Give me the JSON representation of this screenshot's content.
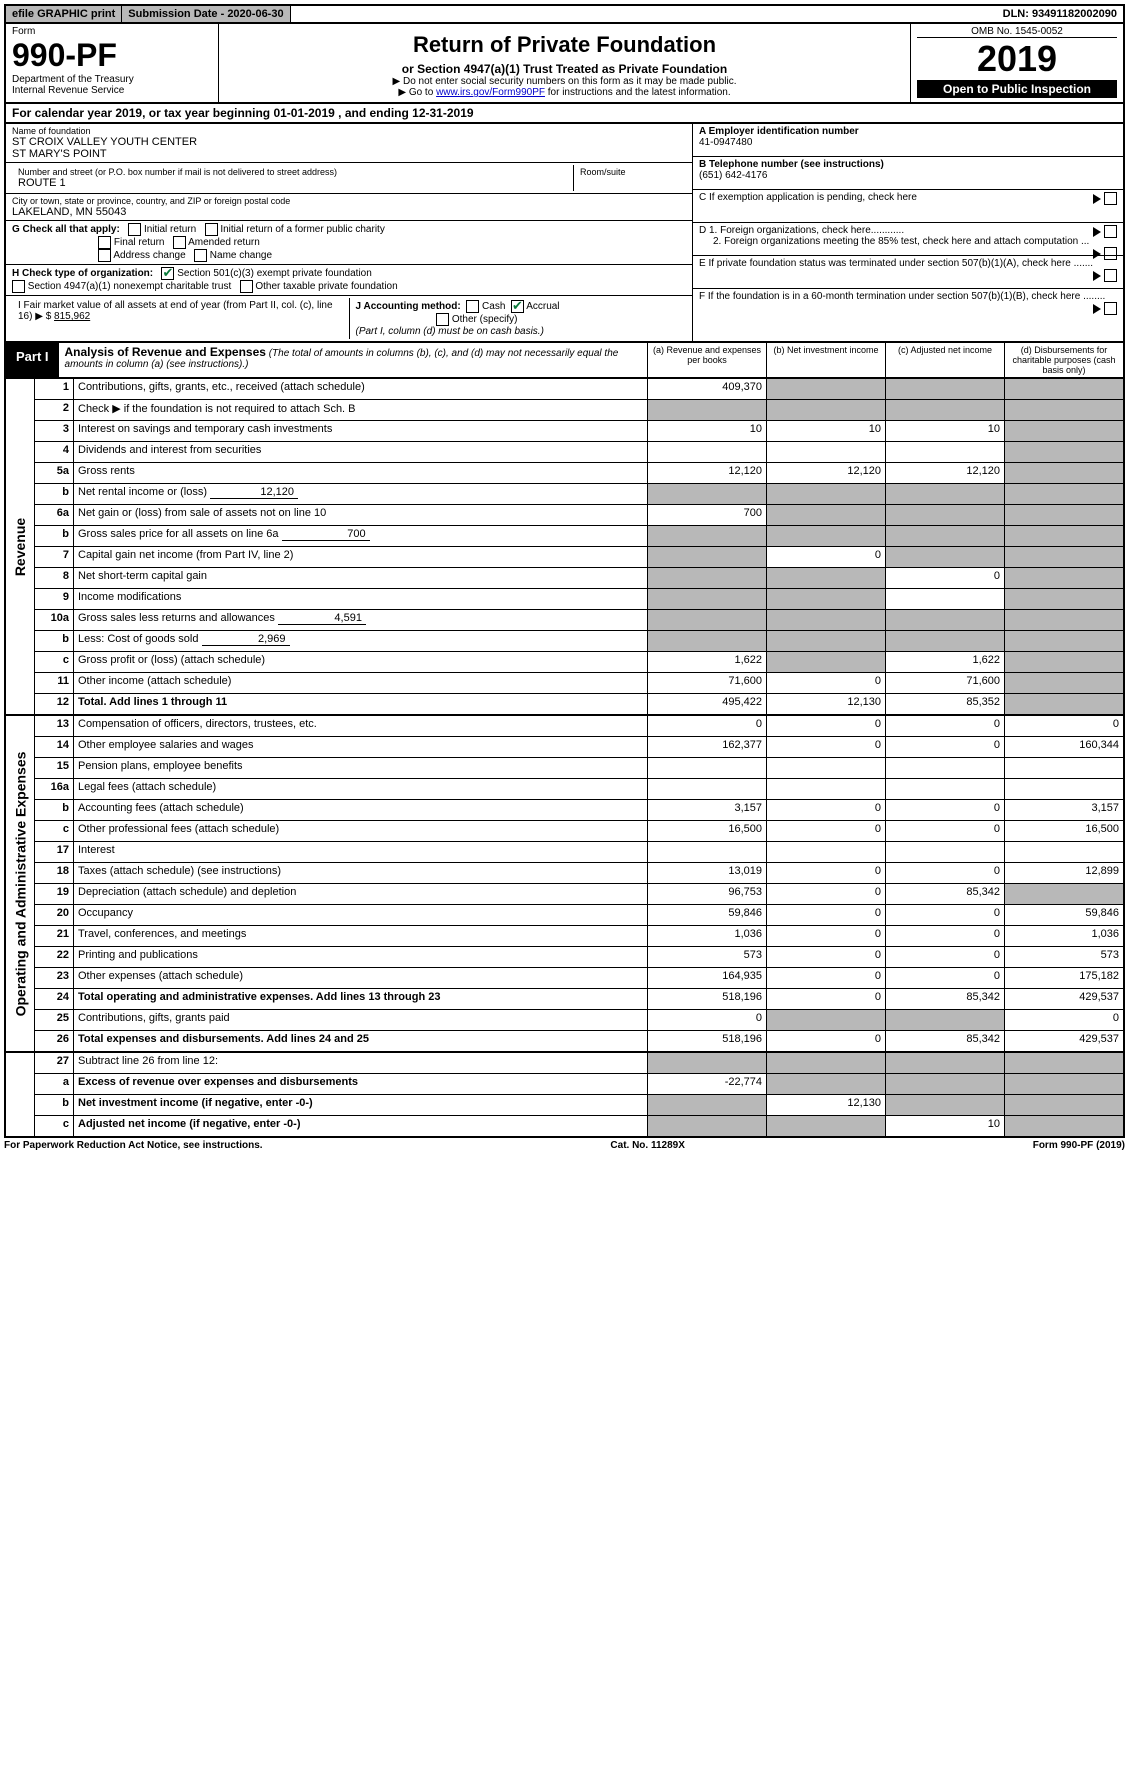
{
  "top": {
    "efile": "efile GRAPHIC print",
    "submission": "Submission Date - 2020-06-30",
    "dln": "DLN: 93491182002090"
  },
  "header": {
    "form_label": "Form",
    "form_number": "990-PF",
    "dept": "Department of the Treasury",
    "irs": "Internal Revenue Service",
    "title": "Return of Private Foundation",
    "subtitle": "or Section 4947(a)(1) Trust Treated as Private Foundation",
    "note1": "▶ Do not enter social security numbers on this form as it may be made public.",
    "note2_pre": "▶ Go to ",
    "note2_link": "www.irs.gov/Form990PF",
    "note2_post": " for instructions and the latest information.",
    "omb": "OMB No. 1545-0052",
    "year": "2019",
    "open": "Open to Public Inspection"
  },
  "cal": "For calendar year 2019, or tax year beginning 01-01-2019                    , and ending 12-31-2019",
  "info": {
    "name_label": "Name of foundation",
    "name1": "ST CROIX VALLEY YOUTH CENTER",
    "name2": "ST MARY'S POINT",
    "addr_label": "Number and street (or P.O. box number if mail is not delivered to street address)",
    "room_label": "Room/suite",
    "addr": "ROUTE 1",
    "city_label": "City or town, state or province, country, and ZIP or foreign postal code",
    "city": "LAKELAND, MN  55043",
    "g_label": "G Check all that apply:",
    "g_initial": "Initial return",
    "g_initial_former": "Initial return of a former public charity",
    "g_final": "Final return",
    "g_amended": "Amended return",
    "g_addr_change": "Address change",
    "g_name_change": "Name change",
    "h_label": "H Check type of organization:",
    "h_501c3": "Section 501(c)(3) exempt private foundation",
    "h_4947": "Section 4947(a)(1) nonexempt charitable trust",
    "h_other_tax": "Other taxable private foundation",
    "i_label": "I Fair market value of all assets at end of year (from Part II, col. (c), line 16) ▶ $",
    "i_value": "815,962",
    "j_label": "J Accounting method:",
    "j_cash": "Cash",
    "j_accrual": "Accrual",
    "j_other": "Other (specify)",
    "j_note": "(Part I, column (d) must be on cash basis.)",
    "a_label": "A Employer identification number",
    "a_value": "41-0947480",
    "b_label": "B Telephone number (see instructions)",
    "b_value": "(651) 642-4176",
    "c_label": "C If exemption application is pending, check here",
    "d1_label": "D 1. Foreign organizations, check here............",
    "d2_label": "2. Foreign organizations meeting the 85% test, check here and attach computation ...",
    "e_label": "E  If private foundation status was terminated under section 507(b)(1)(A), check here .......",
    "f_label": "F  If the foundation is in a 60-month termination under section 507(b)(1)(B), check here ........"
  },
  "part1": {
    "tab": "Part I",
    "title": "Analysis of Revenue and Expenses",
    "title_note": "(The total of amounts in columns (b), (c), and (d) may not necessarily equal the amounts in column (a) (see instructions).)",
    "col_a": "(a)   Revenue and expenses per books",
    "col_b": "(b)  Net investment income",
    "col_c": "(c)  Adjusted net income",
    "col_d": "(d)  Disbursements for charitable purposes (cash basis only)"
  },
  "revenue_label": "Revenue",
  "oae_label": "Operating and Administrative Expenses",
  "rows": {
    "r1": {
      "n": "1",
      "d": "Contributions, gifts, grants, etc., received (attach schedule)",
      "a": "409,370"
    },
    "r2": {
      "n": "2",
      "d": "Check ▶  if the foundation is not required to attach Sch. B"
    },
    "r3": {
      "n": "3",
      "d": "Interest on savings and temporary cash investments",
      "a": "10",
      "b": "10",
      "c": "10"
    },
    "r4": {
      "n": "4",
      "d": "Dividends and interest from securities"
    },
    "r5a": {
      "n": "5a",
      "d": "Gross rents",
      "a": "12,120",
      "b": "12,120",
      "c": "12,120"
    },
    "r5b": {
      "n": "b",
      "d": "Net rental income or (loss)",
      "iv": "12,120"
    },
    "r6a": {
      "n": "6a",
      "d": "Net gain or (loss) from sale of assets not on line 10",
      "a": "700"
    },
    "r6b": {
      "n": "b",
      "d": "Gross sales price for all assets on line 6a",
      "iv": "700"
    },
    "r7": {
      "n": "7",
      "d": "Capital gain net income (from Part IV, line 2)",
      "b": "0"
    },
    "r8": {
      "n": "8",
      "d": "Net short-term capital gain",
      "c": "0"
    },
    "r9": {
      "n": "9",
      "d": "Income modifications"
    },
    "r10a": {
      "n": "10a",
      "d": "Gross sales less returns and allowances",
      "iv": "4,591"
    },
    "r10b": {
      "n": "b",
      "d": "Less: Cost of goods sold",
      "iv": "2,969"
    },
    "r10c": {
      "n": "c",
      "d": "Gross profit or (loss) (attach schedule)",
      "a": "1,622",
      "c": "1,622"
    },
    "r11": {
      "n": "11",
      "d": "Other income (attach schedule)",
      "a": "71,600",
      "b": "0",
      "c": "71,600"
    },
    "r12": {
      "n": "12",
      "d": "Total. Add lines 1 through 11",
      "a": "495,422",
      "b": "12,130",
      "c": "85,352"
    },
    "r13": {
      "n": "13",
      "d": "Compensation of officers, directors, trustees, etc.",
      "a": "0",
      "b": "0",
      "c": "0",
      "dd": "0"
    },
    "r14": {
      "n": "14",
      "d": "Other employee salaries and wages",
      "a": "162,377",
      "b": "0",
      "c": "0",
      "dd": "160,344"
    },
    "r15": {
      "n": "15",
      "d": "Pension plans, employee benefits"
    },
    "r16a": {
      "n": "16a",
      "d": "Legal fees (attach schedule)"
    },
    "r16b": {
      "n": "b",
      "d": "Accounting fees (attach schedule)",
      "a": "3,157",
      "b": "0",
      "c": "0",
      "dd": "3,157"
    },
    "r16c": {
      "n": "c",
      "d": "Other professional fees (attach schedule)",
      "a": "16,500",
      "b": "0",
      "c": "0",
      "dd": "16,500"
    },
    "r17": {
      "n": "17",
      "d": "Interest"
    },
    "r18": {
      "n": "18",
      "d": "Taxes (attach schedule) (see instructions)",
      "a": "13,019",
      "b": "0",
      "c": "0",
      "dd": "12,899"
    },
    "r19": {
      "n": "19",
      "d": "Depreciation (attach schedule) and depletion",
      "a": "96,753",
      "b": "0",
      "c": "85,342"
    },
    "r20": {
      "n": "20",
      "d": "Occupancy",
      "a": "59,846",
      "b": "0",
      "c": "0",
      "dd": "59,846"
    },
    "r21": {
      "n": "21",
      "d": "Travel, conferences, and meetings",
      "a": "1,036",
      "b": "0",
      "c": "0",
      "dd": "1,036"
    },
    "r22": {
      "n": "22",
      "d": "Printing and publications",
      "a": "573",
      "b": "0",
      "c": "0",
      "dd": "573"
    },
    "r23": {
      "n": "23",
      "d": "Other expenses (attach schedule)",
      "a": "164,935",
      "b": "0",
      "c": "0",
      "dd": "175,182"
    },
    "r24": {
      "n": "24",
      "d": "Total operating and administrative expenses. Add lines 13 through 23",
      "a": "518,196",
      "b": "0",
      "c": "85,342",
      "dd": "429,537"
    },
    "r25": {
      "n": "25",
      "d": "Contributions, gifts, grants paid",
      "a": "0",
      "dd": "0"
    },
    "r26": {
      "n": "26",
      "d": "Total expenses and disbursements. Add lines 24 and 25",
      "a": "518,196",
      "b": "0",
      "c": "85,342",
      "dd": "429,537"
    },
    "r27": {
      "n": "27",
      "d": "Subtract line 26 from line 12:"
    },
    "r27a": {
      "n": "a",
      "d": "Excess of revenue over expenses and disbursements",
      "a": "-22,774"
    },
    "r27b": {
      "n": "b",
      "d": "Net investment income (if negative, enter -0-)",
      "b": "12,130"
    },
    "r27c": {
      "n": "c",
      "d": "Adjusted net income (if negative, enter -0-)",
      "c": "10"
    }
  },
  "footer": {
    "left": "For Paperwork Reduction Act Notice, see instructions.",
    "mid": "Cat. No. 11289X",
    "right": "Form 990-PF (2019)"
  }
}
